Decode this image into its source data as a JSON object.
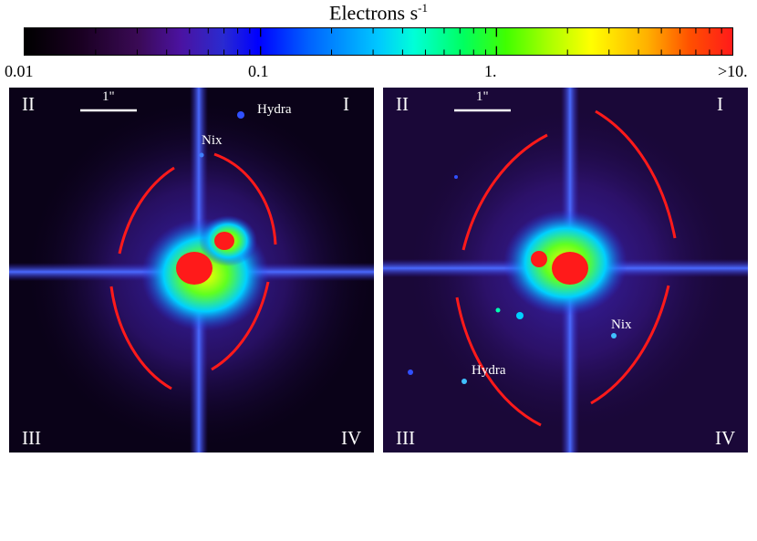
{
  "colorbar": {
    "title": "Electrons s",
    "title_exponent": "-1",
    "tick_labels": [
      "0.01",
      "0.1",
      "1.",
      ">10."
    ],
    "colors": [
      "#000000",
      "#4b12a0",
      "#0000ff",
      "#00ffff",
      "#00ff00",
      "#ffff00",
      "#ff1a1a"
    ]
  },
  "left_panel": {
    "quadrants": {
      "top_left": "II",
      "top_right": "I",
      "bottom_left": "III",
      "bottom_right": "IV"
    },
    "scale_label": "1\"",
    "moons": {
      "hydra": "Hydra",
      "nix": "Nix"
    }
  },
  "right_panel": {
    "quadrants": {
      "top_left": "II",
      "top_right": "I",
      "bottom_left": "III",
      "bottom_right": "IV"
    },
    "scale_label": "1\"",
    "moons": {
      "hydra": "Hydra",
      "nix": "Nix"
    }
  },
  "colors": {
    "arc": "#ff1a1a",
    "label": "#ffffff",
    "background": "#05000a"
  }
}
